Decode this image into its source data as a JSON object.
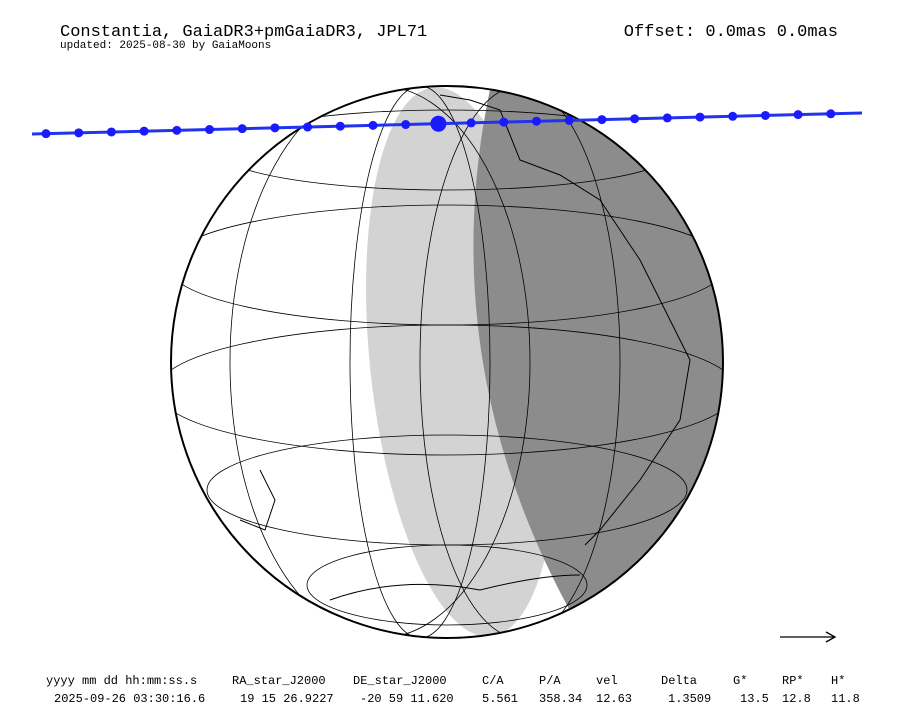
{
  "header": {
    "title": "Constantia, GaiaDR3+pmGaiaDR3, JPL71",
    "subtitle": "updated: 2025-08-30 by GaiaMoons",
    "offset": "Offset: 0.0mas 0.0mas"
  },
  "table": {
    "columns": [
      "yyyy mm dd hh:mm:ss.s",
      "RA_star_J2000",
      "DE_star_J2000",
      "C/A",
      "P/A",
      "vel",
      "Delta",
      "G*",
      "RP*",
      "H*"
    ],
    "rows": [
      [
        "2025-09-26 03:30:16.6",
        "19 15 26.9227",
        "-20 59 11.620",
        "5.561",
        "358.34",
        "12.63",
        "1.3509",
        "13.5",
        "12.8",
        "11.8"
      ]
    ]
  }
}
